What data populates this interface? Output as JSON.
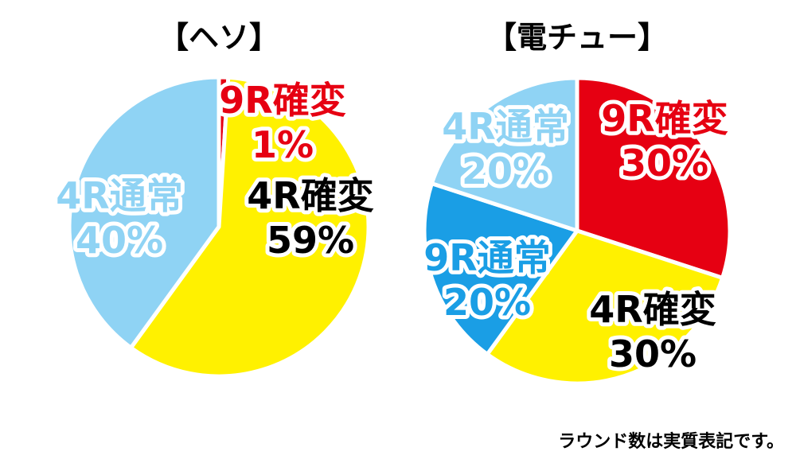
{
  "chart_data": [
    {
      "type": "pie",
      "title": "【ヘソ】",
      "slices": [
        {
          "category": "9R確変",
          "value_label": "1%",
          "value": 1,
          "color": "#e60012",
          "label_color": "#e60012"
        },
        {
          "category": "4R確変",
          "value_label": "59%",
          "value": 59,
          "color": "#fff100",
          "label_color": "#000000"
        },
        {
          "category": "4R通常",
          "value_label": "40%",
          "value": 40,
          "color": "#8fd3f4",
          "label_color": "#8fd3f4"
        }
      ]
    },
    {
      "type": "pie",
      "title": "【電チュー】",
      "slices": [
        {
          "category": "9R確変",
          "value_label": "30%",
          "value": 30,
          "color": "#e60012",
          "label_color": "#e60012"
        },
        {
          "category": "4R確変",
          "value_label": "30%",
          "value": 30,
          "color": "#fff100",
          "label_color": "#000000"
        },
        {
          "category": "9R通常",
          "value_label": "20%",
          "value": 20,
          "color": "#1a9ee5",
          "label_color": "#1a9ee5"
        },
        {
          "category": "4R通常",
          "value_label": "20%",
          "value": 20,
          "color": "#8fd3f4",
          "label_color": "#8fd3f4"
        }
      ]
    }
  ],
  "footnote": "ラウンド数は実質表記です。"
}
